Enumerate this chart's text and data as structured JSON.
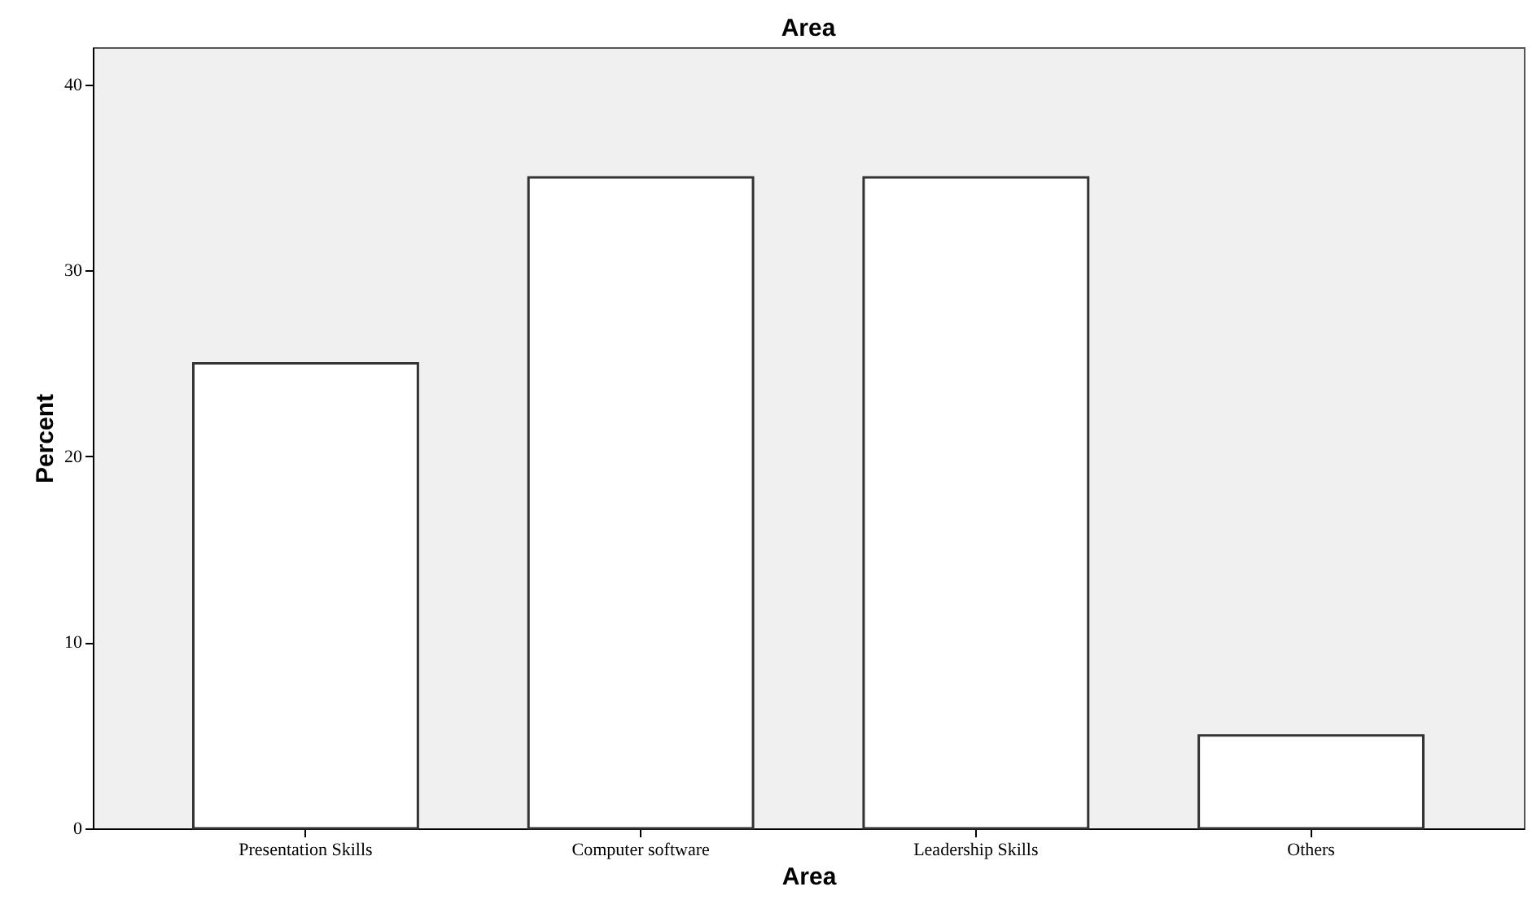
{
  "chart_data": {
    "type": "bar",
    "title": "Area",
    "xlabel": "Area",
    "ylabel": "Percent",
    "categories": [
      "Presentation Skills",
      "Computer software",
      "Leadership Skills",
      "Others"
    ],
    "values": [
      25,
      35,
      35,
      5
    ],
    "color": "#ffffff",
    "ylim": [
      0,
      42
    ],
    "yticks": [
      0,
      10,
      20,
      30,
      40
    ],
    "grid": false
  }
}
